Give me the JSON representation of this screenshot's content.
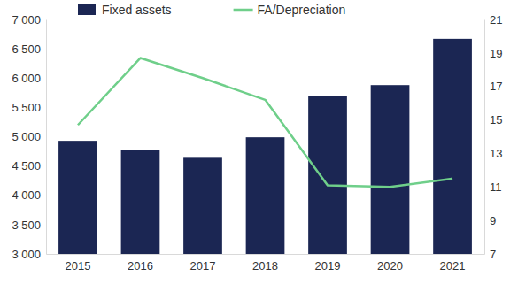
{
  "chart_data": {
    "type": "bar",
    "categories": [
      "2015",
      "2016",
      "2017",
      "2018",
      "2019",
      "2020",
      "2021"
    ],
    "series": [
      {
        "name": "Fixed assets",
        "type": "bar",
        "color": "#1b2653",
        "values": [
          4930,
          4780,
          4640,
          4990,
          5690,
          5880,
          6670
        ]
      },
      {
        "name": "FA/Depreciation",
        "type": "line",
        "color": "#6fcf8a",
        "axis": "y2",
        "values": [
          14.7,
          18.7,
          17.5,
          16.2,
          11.1,
          11.0,
          11.5
        ]
      }
    ],
    "ylim": [
      3000,
      7000
    ],
    "yticks": [
      {
        "value": 3000,
        "label": "3 000"
      },
      {
        "value": 3500,
        "label": "3 500"
      },
      {
        "value": 4000,
        "label": "4 000"
      },
      {
        "value": 4500,
        "label": "4 500"
      },
      {
        "value": 5000,
        "label": "5 000"
      },
      {
        "value": 5500,
        "label": "5 500"
      },
      {
        "value": 6000,
        "label": "6 000"
      },
      {
        "value": 6500,
        "label": "6 500"
      },
      {
        "value": 7000,
        "label": "7 000"
      }
    ],
    "y2lim": [
      7,
      21
    ],
    "y2ticks": [
      7,
      9,
      11,
      13,
      15,
      17,
      19,
      21
    ],
    "legend": "top"
  }
}
